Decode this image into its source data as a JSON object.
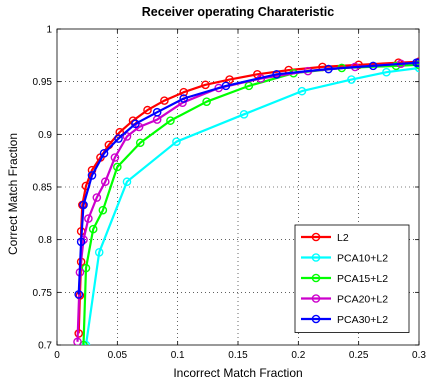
{
  "chart_data": {
    "type": "line",
    "title": "Receiver operating Charateristic",
    "xlabel": "Incorrect Match Fraction",
    "ylabel": "Correct Match Fraction",
    "xlim": [
      0,
      0.3
    ],
    "ylim": [
      0.7,
      1.0
    ],
    "xticks": [
      0,
      0.05,
      0.1,
      0.15,
      0.2,
      0.25,
      0.3
    ],
    "xtick_labels": [
      "0",
      "0.05",
      "0.1",
      "0.15",
      "0.2",
      "0.25",
      "0.3"
    ],
    "yticks": [
      0.7,
      0.75,
      0.8,
      0.85,
      0.9,
      0.95,
      1.0
    ],
    "ytick_labels": [
      "0.7",
      "0.75",
      "0.8",
      "0.85",
      "0.9",
      "0.95",
      "1"
    ],
    "grid": true,
    "legend_position": "bottom-right",
    "series": [
      {
        "name": "L2",
        "color": "#ff0000",
        "points": [
          [
            0.018,
            0.711
          ],
          [
            0.019,
            0.747
          ],
          [
            0.02,
            0.779
          ],
          [
            0.02,
            0.808
          ],
          [
            0.021,
            0.833
          ],
          [
            0.024,
            0.851
          ],
          [
            0.029,
            0.866
          ],
          [
            0.036,
            0.878
          ],
          [
            0.043,
            0.89
          ],
          [
            0.052,
            0.902
          ],
          [
            0.063,
            0.913
          ],
          [
            0.075,
            0.923
          ],
          [
            0.089,
            0.932
          ],
          [
            0.105,
            0.94
          ],
          [
            0.123,
            0.947
          ],
          [
            0.143,
            0.952
          ],
          [
            0.166,
            0.957
          ],
          [
            0.192,
            0.961
          ],
          [
            0.22,
            0.964
          ],
          [
            0.25,
            0.966
          ],
          [
            0.283,
            0.968
          ],
          [
            0.3,
            0.969
          ]
        ]
      },
      {
        "name": "PCA10+L2",
        "color": "#00ffff",
        "points": [
          [
            0.024,
            0.7
          ],
          [
            0.035,
            0.788
          ],
          [
            0.058,
            0.855
          ],
          [
            0.099,
            0.893
          ],
          [
            0.155,
            0.919
          ],
          [
            0.203,
            0.941
          ],
          [
            0.244,
            0.952
          ],
          [
            0.273,
            0.959
          ],
          [
            0.3,
            0.963
          ]
        ]
      },
      {
        "name": "PCA15+L2",
        "color": "#00ff00",
        "points": [
          [
            0.022,
            0.7
          ],
          [
            0.024,
            0.773
          ],
          [
            0.03,
            0.81
          ],
          [
            0.038,
            0.828
          ],
          [
            0.05,
            0.869
          ],
          [
            0.069,
            0.892
          ],
          [
            0.094,
            0.913
          ],
          [
            0.124,
            0.931
          ],
          [
            0.159,
            0.946
          ],
          [
            0.196,
            0.958
          ],
          [
            0.236,
            0.963
          ],
          [
            0.281,
            0.965
          ],
          [
            0.3,
            0.966
          ]
        ]
      },
      {
        "name": "PCA20+L2",
        "color": "#cc00cc",
        "points": [
          [
            0.017,
            0.703
          ],
          [
            0.019,
            0.769
          ],
          [
            0.022,
            0.8
          ],
          [
            0.026,
            0.82
          ],
          [
            0.033,
            0.84
          ],
          [
            0.04,
            0.855
          ],
          [
            0.048,
            0.878
          ],
          [
            0.058,
            0.898
          ],
          [
            0.068,
            0.907
          ],
          [
            0.083,
            0.914
          ],
          [
            0.104,
            0.93
          ],
          [
            0.134,
            0.944
          ],
          [
            0.169,
            0.953
          ],
          [
            0.208,
            0.96
          ],
          [
            0.247,
            0.964
          ],
          [
            0.285,
            0.967
          ],
          [
            0.3,
            0.968
          ]
        ]
      },
      {
        "name": "PCA30+L2",
        "color": "#0000ff",
        "points": [
          [
            0.018,
            0.748
          ],
          [
            0.02,
            0.798
          ],
          [
            0.022,
            0.833
          ],
          [
            0.029,
            0.861
          ],
          [
            0.039,
            0.882
          ],
          [
            0.051,
            0.896
          ],
          [
            0.065,
            0.91
          ],
          [
            0.083,
            0.921
          ],
          [
            0.105,
            0.934
          ],
          [
            0.14,
            0.946
          ],
          [
            0.182,
            0.957
          ],
          [
            0.225,
            0.962
          ],
          [
            0.262,
            0.965
          ],
          [
            0.298,
            0.968
          ],
          [
            0.3,
            0.968
          ]
        ]
      }
    ]
  }
}
